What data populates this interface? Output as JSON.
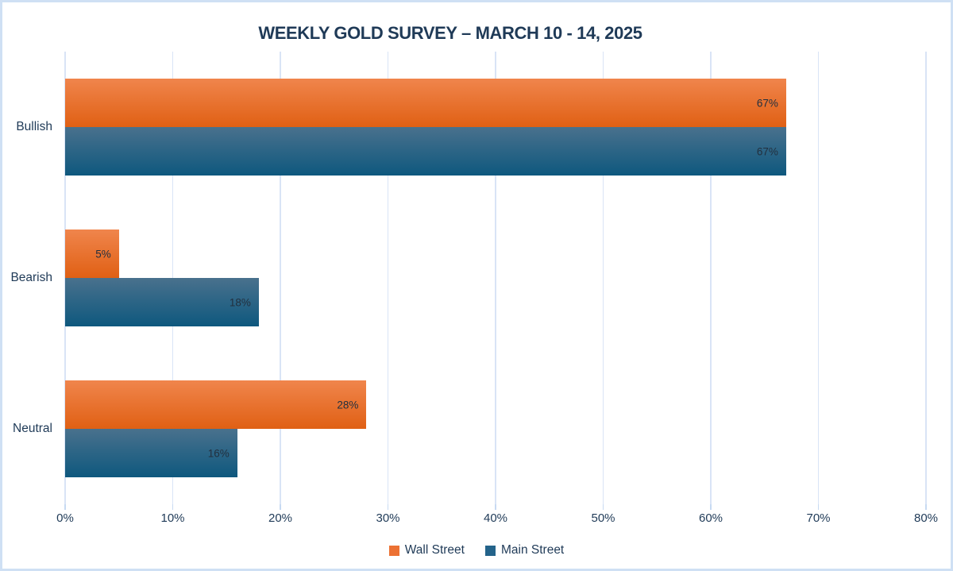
{
  "page": {
    "background": "#ffffff",
    "border_color": "#cfe0f4"
  },
  "chart_data": {
    "type": "bar",
    "orientation": "horizontal",
    "title": "WEEKLY GOLD SURVEY – MARCH 10 - 14, 2025",
    "categories": [
      "Bullish",
      "Bearish",
      "Neutral"
    ],
    "series": [
      {
        "name": "Wall Street",
        "values": [
          67,
          5,
          28
        ],
        "color_top": "#f0854c",
        "color_bottom": "#e06014",
        "legend_color": "#ec7133"
      },
      {
        "name": "Main Street",
        "values": [
          67,
          18,
          16
        ],
        "color_top": "#49718d",
        "color_bottom": "#0e587e",
        "legend_color": "#24638a"
      }
    ],
    "data_label_suffix": "%",
    "data_label_color": "#22303f",
    "x_axis": {
      "min": 0,
      "max": 80,
      "ticks": [
        "0%",
        "10%",
        "20%",
        "30%",
        "40%",
        "50%",
        "60%",
        "70%",
        "80%"
      ]
    },
    "grid": true,
    "gridline_color": "#d9e4f6",
    "legend_position": "bottom",
    "text_color": "#1f3a57"
  }
}
